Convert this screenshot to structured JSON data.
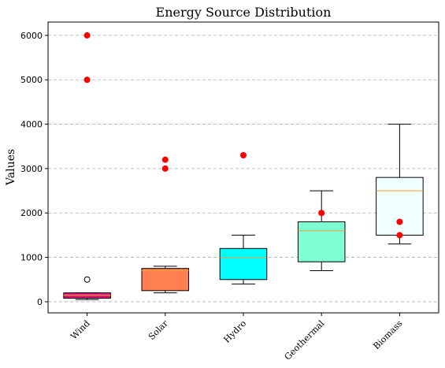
{
  "chart_data": {
    "type": "boxplot",
    "title": "Energy Source Distribution",
    "xlabel": "",
    "ylabel": "Values",
    "ylim": [
      -250,
      6300
    ],
    "yticks": [
      0,
      1000,
      2000,
      3000,
      4000,
      5000,
      6000
    ],
    "grid": "y-dashed",
    "categories": [
      "Wind",
      "Solar",
      "Hydro",
      "Geothermal",
      "Biomass"
    ],
    "box_colors": [
      "#e0187a",
      "#ff7f50",
      "#00ffff",
      "#7fffd4",
      "#f0ffff"
    ],
    "boxes": [
      {
        "whislo": 50,
        "q1": 80,
        "med": 150,
        "q3": 200,
        "whishi": 200,
        "fliers": [
          500
        ]
      },
      {
        "whislo": 200,
        "q1": 250,
        "med": 700,
        "q3": 750,
        "whishi": 800,
        "fliers": []
      },
      {
        "whislo": 400,
        "q1": 500,
        "med": 1000,
        "q3": 1200,
        "whishi": 1500,
        "fliers": []
      },
      {
        "whislo": 700,
        "q1": 900,
        "med": 1600,
        "q3": 1800,
        "whishi": 2500,
        "fliers": []
      },
      {
        "whislo": 1300,
        "q1": 1500,
        "med": 2500,
        "q3": 2800,
        "whishi": 4000,
        "fliers": []
      }
    ],
    "outliers": [
      {
        "category": "Wind",
        "values": [
          5000,
          6000
        ]
      },
      {
        "category": "Solar",
        "values": [
          3000,
          3200
        ]
      },
      {
        "category": "Hydro",
        "values": [
          3300
        ]
      },
      {
        "category": "Geothermal",
        "values": [
          2000
        ]
      },
      {
        "category": "Biomass",
        "values": [
          1500,
          1800
        ]
      }
    ],
    "outlier_color": "#ff0000"
  }
}
